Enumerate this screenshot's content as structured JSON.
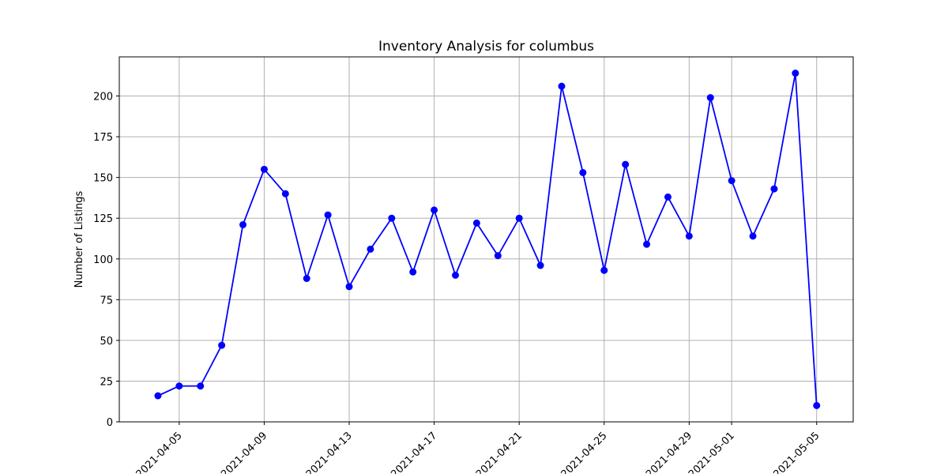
{
  "chart_data": {
    "type": "line",
    "title": "Inventory Analysis for columbus",
    "xlabel": "",
    "ylabel": "Number of Listings",
    "grid": true,
    "line_color": "#0000ff",
    "marker_color": "#0000ff",
    "grid_color": "#b0b0b0",
    "x_axis_type": "date",
    "xlim": [
      "2021-04-02",
      "2021-05-06"
    ],
    "ylim": [
      0,
      224
    ],
    "y_ticks": [
      0,
      25,
      50,
      75,
      100,
      125,
      150,
      175,
      200
    ],
    "x_ticks": [
      "2021-04-05",
      "2021-04-09",
      "2021-04-13",
      "2021-04-17",
      "2021-04-21",
      "2021-04-25",
      "2021-04-29",
      "2021-05-01",
      "2021-05-05"
    ],
    "x": [
      "2021-04-04",
      "2021-04-05",
      "2021-04-06",
      "2021-04-07",
      "2021-04-08",
      "2021-04-09",
      "2021-04-10",
      "2021-04-11",
      "2021-04-12",
      "2021-04-13",
      "2021-04-14",
      "2021-04-15",
      "2021-04-16",
      "2021-04-17",
      "2021-04-18",
      "2021-04-19",
      "2021-04-20",
      "2021-04-21",
      "2021-04-22",
      "2021-04-23",
      "2021-04-24",
      "2021-04-25",
      "2021-04-26",
      "2021-04-27",
      "2021-04-28",
      "2021-04-29",
      "2021-04-30",
      "2021-05-01",
      "2021-05-02",
      "2021-05-03",
      "2021-05-04",
      "2021-05-05"
    ],
    "y": [
      16,
      22,
      22,
      47,
      121,
      155,
      140,
      88,
      127,
      83,
      106,
      125,
      92,
      130,
      90,
      122,
      102,
      125,
      96,
      206,
      153,
      93,
      158,
      109,
      138,
      114,
      199,
      148,
      114,
      143,
      214,
      10
    ]
  }
}
